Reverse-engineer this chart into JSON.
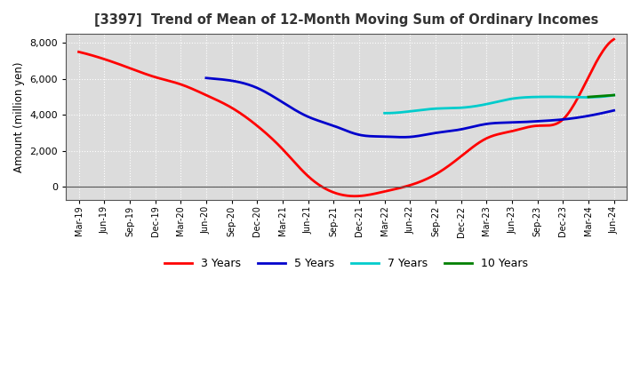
{
  "title": "[3397]  Trend of Mean of 12-Month Moving Sum of Ordinary Incomes",
  "ylabel": "Amount (million yen)",
  "ylim": [
    -700,
    8500
  ],
  "yticks": [
    0,
    2000,
    4000,
    6000,
    8000
  ],
  "background_color": "#ffffff",
  "plot_background_color": "#dcdcdc",
  "grid_color": "#ffffff",
  "grid_style": "dotted",
  "x_labels": [
    "Mar-19",
    "Jun-19",
    "Sep-19",
    "Dec-19",
    "Mar-20",
    "Jun-20",
    "Sep-20",
    "Dec-20",
    "Mar-21",
    "Jun-21",
    "Sep-21",
    "Dec-21",
    "Mar-22",
    "Jun-22",
    "Sep-22",
    "Dec-22",
    "Mar-23",
    "Jun-23",
    "Sep-23",
    "Dec-23",
    "Mar-24",
    "Jun-24"
  ],
  "series": {
    "3 Years": {
      "color": "#ff0000",
      "data": [
        7500,
        7100,
        6600,
        6100,
        5700,
        5100,
        4400,
        3400,
        2100,
        600,
        -300,
        -500,
        -250,
        100,
        700,
        1700,
        2700,
        3100,
        3400,
        3750,
        6100,
        8200
      ]
    },
    "5 Years": {
      "color": "#0000cc",
      "data": [
        null,
        null,
        null,
        null,
        null,
        6050,
        5900,
        5500,
        4700,
        3900,
        3400,
        2900,
        2800,
        2780,
        3000,
        3200,
        3500,
        3580,
        3650,
        3750,
        3950,
        4250
      ]
    },
    "7 Years": {
      "color": "#00cccc",
      "data": [
        null,
        null,
        null,
        null,
        null,
        null,
        null,
        null,
        null,
        null,
        null,
        null,
        4100,
        4200,
        4350,
        4400,
        4600,
        4900,
        5000,
        5000,
        4980,
        5100
      ]
    },
    "10 Years": {
      "color": "#008000",
      "data": [
        null,
        null,
        null,
        null,
        null,
        null,
        null,
        null,
        null,
        null,
        null,
        null,
        null,
        null,
        null,
        null,
        null,
        null,
        null,
        null,
        5000,
        5100
      ]
    }
  },
  "legend_labels": [
    "3 Years",
    "5 Years",
    "7 Years",
    "10 Years"
  ],
  "legend_colors": [
    "#ff0000",
    "#0000cc",
    "#00cccc",
    "#008000"
  ]
}
